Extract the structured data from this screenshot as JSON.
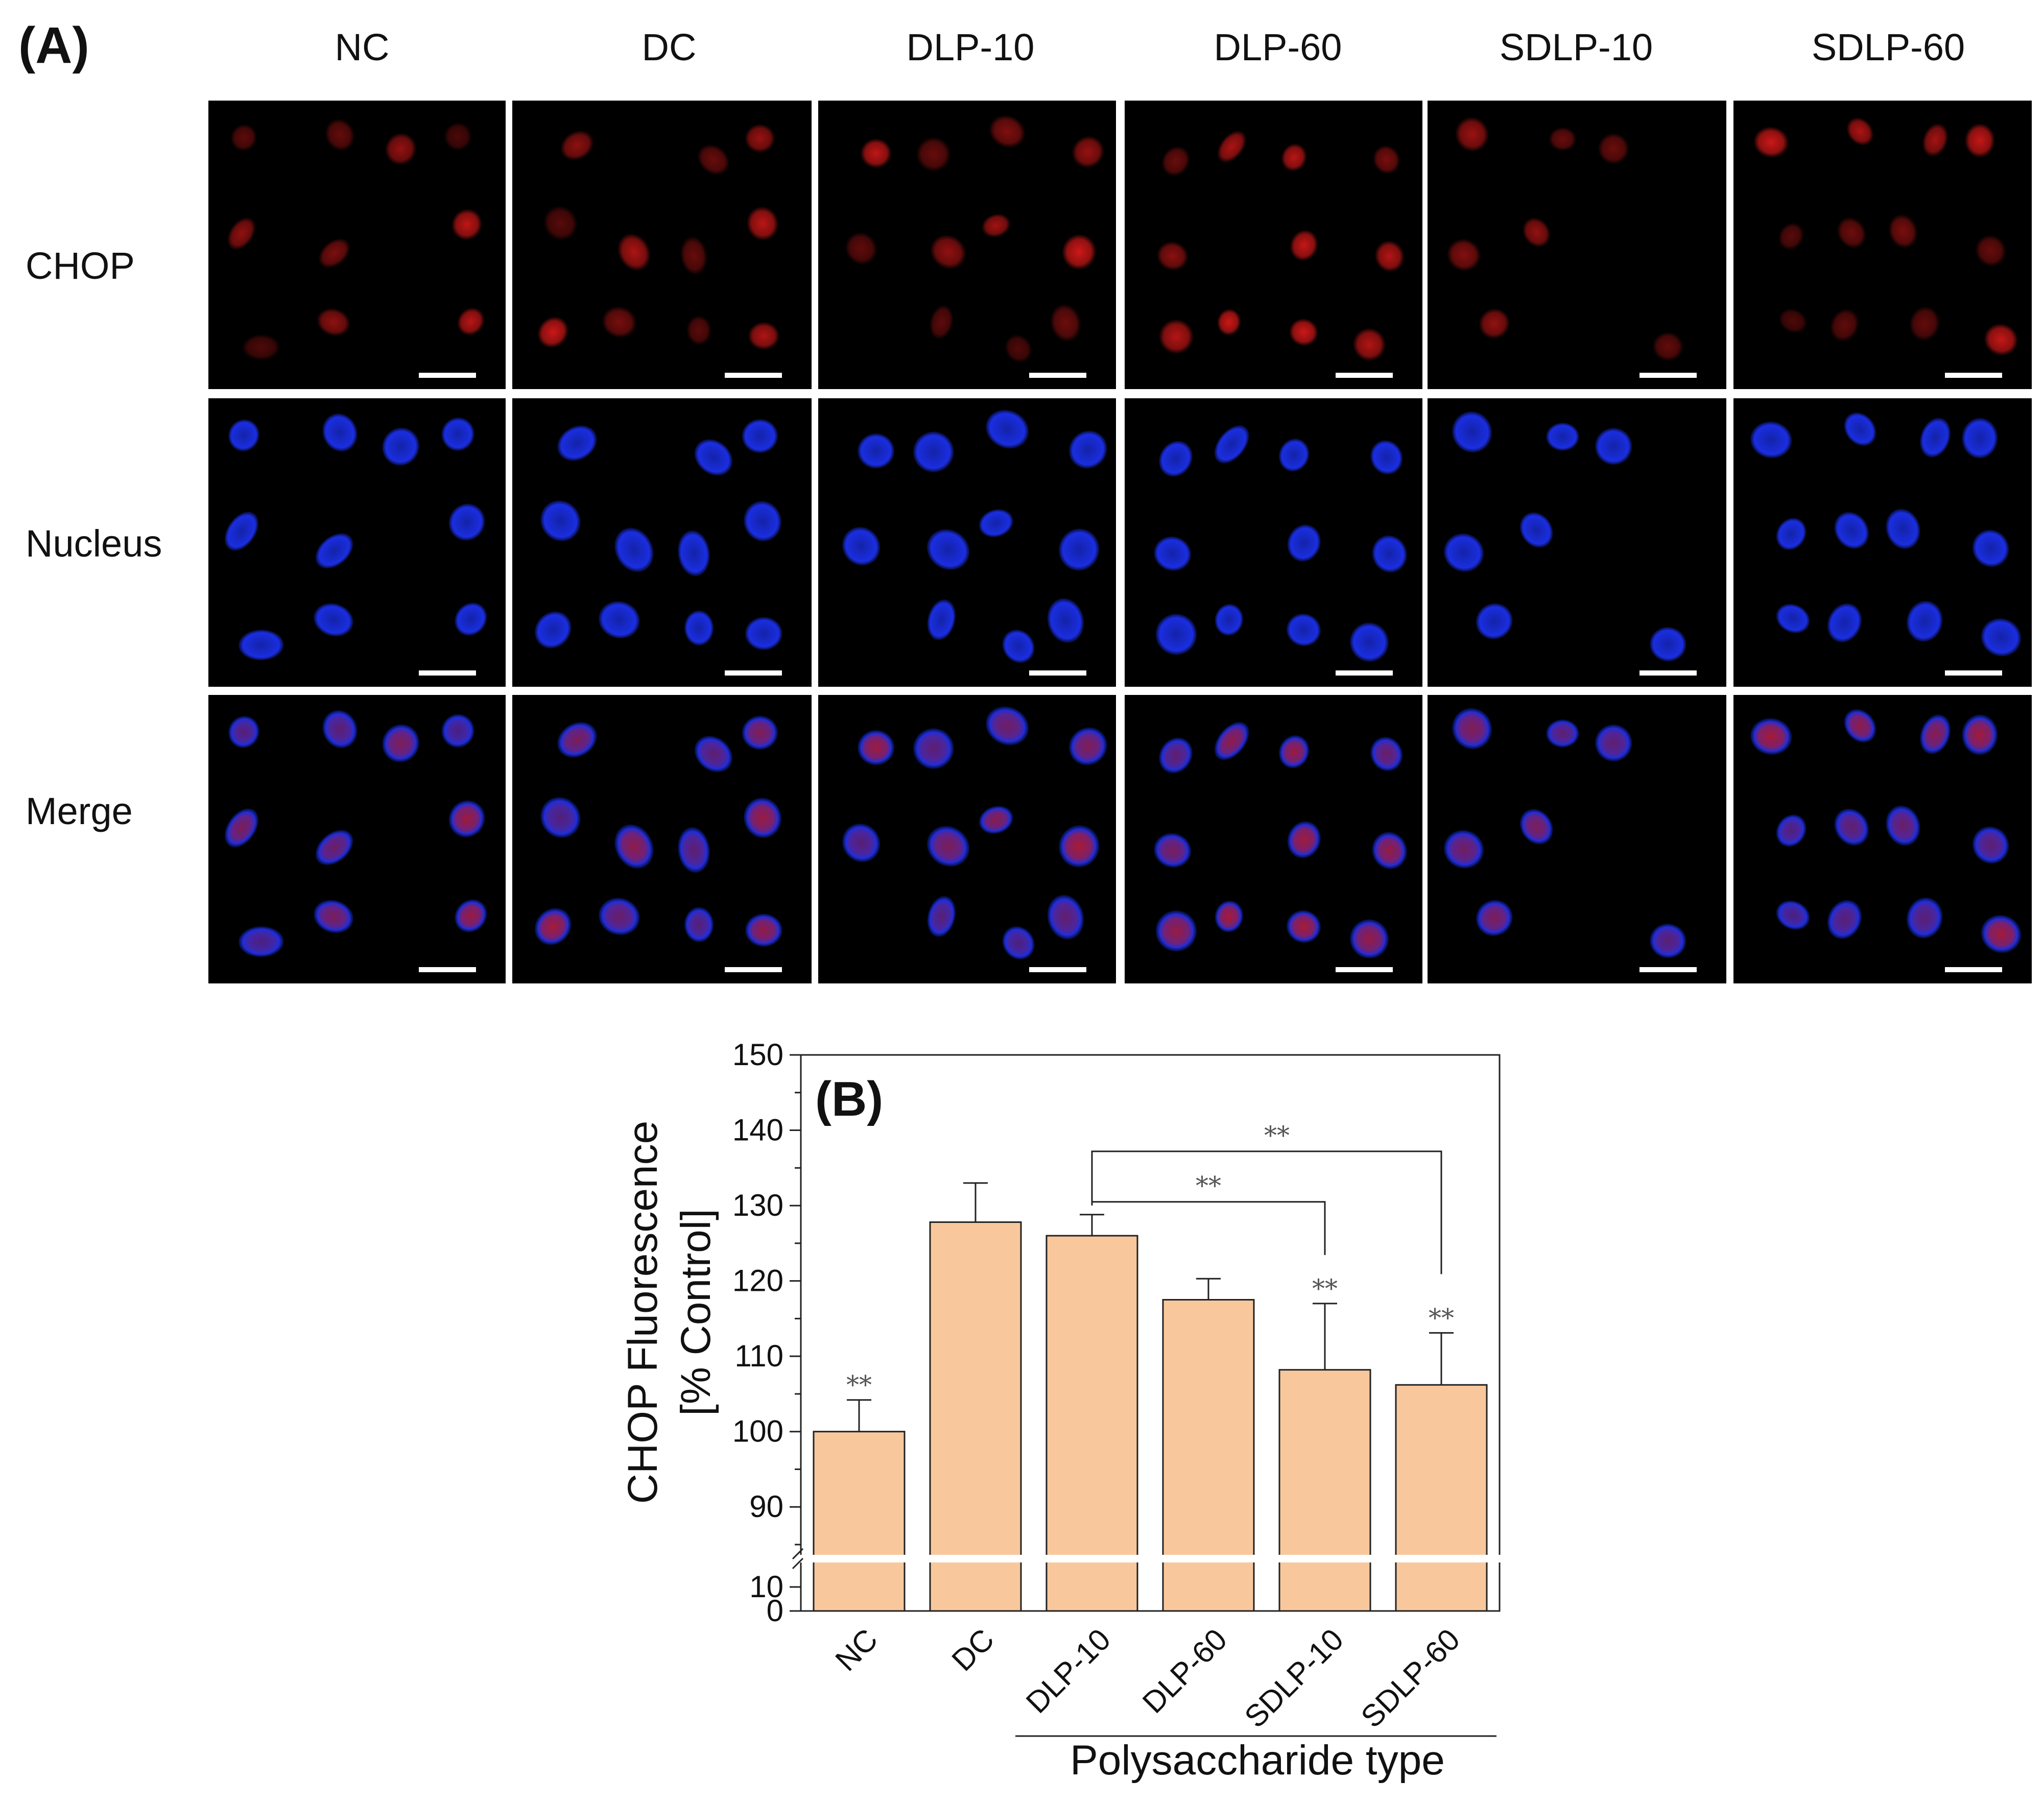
{
  "panel_a": {
    "label": "(A)",
    "columns": [
      "NC",
      "DC",
      "DLP-10",
      "DLP-60",
      "SDLP-10",
      "SDLP-60"
    ],
    "rows": [
      "CHOP",
      "Nucleus",
      "Merge"
    ],
    "stain_colors": {
      "CHOP": "#d01818",
      "Nucleus": "#1a2ee0",
      "scale_bar": "#ffffff",
      "background": "#000000"
    }
  },
  "chart_data": {
    "type": "bar",
    "panel_label": "(B)",
    "categories": [
      "NC",
      "DC",
      "DLP-10",
      "DLP-60",
      "SDLP-10",
      "SDLP-60"
    ],
    "series": [
      {
        "values": [
          100,
          127.8,
          126,
          117.5,
          108.2,
          106.2
        ],
        "errors": [
          4.2,
          5.2,
          2.8,
          2.8,
          8.8,
          6.9
        ],
        "color": "#f8c89c"
      }
    ],
    "significance": [
      "**",
      "",
      "",
      "",
      "**",
      "**"
    ],
    "comparisons": [
      {
        "from": "DLP-10",
        "to": "SDLP-10",
        "label": "**"
      },
      {
        "from": "DLP-10",
        "to": "SDLP-60",
        "label": "**"
      }
    ],
    "ylabel_line1": "CHOP Fluorescence",
    "ylabel_line2": "[% Control]",
    "xlabel": "Polysaccharide type",
    "ylim": [
      0,
      150
    ],
    "y_axis_break": [
      12,
      85
    ],
    "yticks_upper": [
      90,
      100,
      110,
      120,
      130,
      140,
      150
    ],
    "yticks_lower": [
      0,
      10
    ],
    "grid": false
  }
}
